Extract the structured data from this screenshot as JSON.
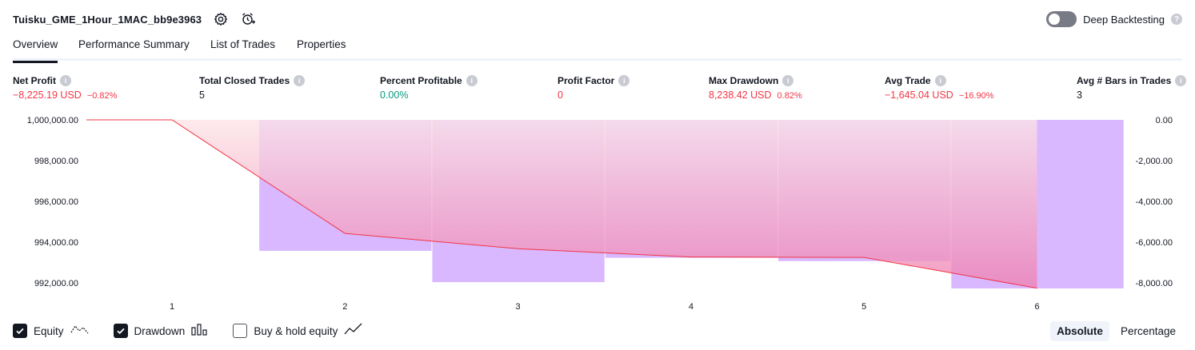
{
  "header": {
    "strategy_title": "Tuisku_GME_1Hour_1MAC_bb9e3963",
    "settings_icon": "gear-icon",
    "alert_icon": "alarm-clock-plus-icon"
  },
  "deep_backtesting": {
    "label": "Deep Backtesting",
    "enabled": false,
    "help_icon": "question-icon"
  },
  "tabs": [
    {
      "label": "Overview",
      "active": true
    },
    {
      "label": "Performance Summary",
      "active": false
    },
    {
      "label": "List of Trades",
      "active": false
    },
    {
      "label": "Properties",
      "active": false
    }
  ],
  "metrics": [
    {
      "label": "Net Profit",
      "value": "−8,225.19 USD",
      "sub": "−0.82%",
      "tone": "neg"
    },
    {
      "label": "Total Closed Trades",
      "value": "5",
      "sub": "",
      "tone": "neu"
    },
    {
      "label": "Percent Profitable",
      "value": "0.00%",
      "sub": "",
      "tone": "pos"
    },
    {
      "label": "Profit Factor",
      "value": "0",
      "sub": "",
      "tone": "neg"
    },
    {
      "label": "Max Drawdown",
      "value": "8,238.42 USD",
      "sub": "0.82%",
      "tone": "neg"
    },
    {
      "label": "Avg Trade",
      "value": "−1,645.04 USD",
      "sub": "−16.90%",
      "tone": "neg"
    },
    {
      "label": "Avg # Bars in Trades",
      "value": "3",
      "sub": "",
      "tone": "neu"
    }
  ],
  "chart_data": {
    "type": "area",
    "x_ticks": [
      "1",
      "2",
      "3",
      "4",
      "5",
      "6"
    ],
    "left_axis": {
      "ticks": [
        "1,000,000.00",
        "998,000.00",
        "996,000.00",
        "994,000.00",
        "992,000.00"
      ],
      "range": [
        991800,
        1000000
      ]
    },
    "right_axis": {
      "ticks": [
        "0.00",
        "-2,000.00",
        "-4,000.00",
        "-6,000.00",
        "-8,000.00"
      ],
      "range": [
        -8200,
        0
      ]
    },
    "equity": {
      "name": "Equity",
      "x": [
        0.0,
        1,
        2,
        3,
        4,
        5,
        6
      ],
      "values": [
        1000000,
        1000000,
        994450,
        993700,
        993300,
        993280,
        991775
      ]
    },
    "drawdown": {
      "name": "Drawdown",
      "x": [
        2,
        3,
        4,
        5,
        6
      ],
      "values": [
        -6400,
        -7930,
        -6740,
        -6900,
        -8238
      ]
    },
    "colors": {
      "equity_line": "#f23645",
      "equity_fill_top": "#fde4e6",
      "equity_fill_bottom": "#ee7fb0",
      "drawdown_bar": "#d9b8ff",
      "start_line": "#e05561"
    }
  },
  "legend": [
    {
      "label": "Equity",
      "checked": true,
      "icon": "equity-line-icon"
    },
    {
      "label": "Drawdown",
      "checked": true,
      "icon": "drawdown-bars-icon"
    },
    {
      "label": "Buy & hold equity",
      "checked": false,
      "icon": "buy-hold-line-icon"
    }
  ],
  "scale_toggle": {
    "options": [
      "Absolute",
      "Percentage"
    ],
    "selected": "Absolute"
  }
}
